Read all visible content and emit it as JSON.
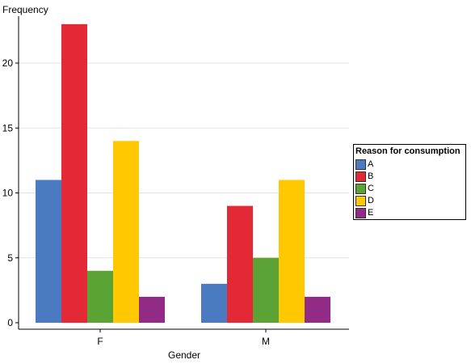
{
  "chart_data": {
    "type": "bar",
    "ylabel": "Frequency",
    "xlabel": "Gender",
    "categories": [
      "F",
      "M"
    ],
    "ylim": [
      0,
      23
    ],
    "yticks": [
      0,
      5,
      10,
      15,
      20
    ],
    "grid": true,
    "legend": {
      "title": "Reason for consumption",
      "placement": "right"
    },
    "series": [
      {
        "name": "A",
        "color": "#4a7bc0",
        "values": [
          11,
          3
        ]
      },
      {
        "name": "B",
        "color": "#e32836",
        "values": [
          23,
          9
        ]
      },
      {
        "name": "C",
        "color": "#5aa334",
        "values": [
          4,
          5
        ]
      },
      {
        "name": "D",
        "color": "#ffc800",
        "values": [
          14,
          11
        ]
      },
      {
        "name": "E",
        "color": "#922b86",
        "values": [
          2,
          2
        ]
      }
    ]
  }
}
